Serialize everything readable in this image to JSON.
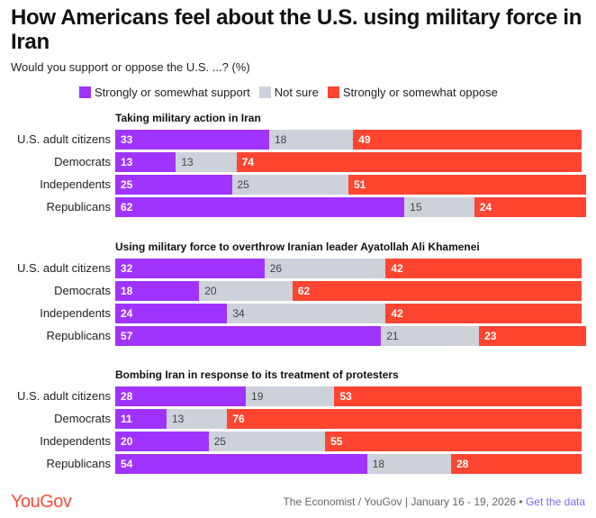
{
  "title": "How Americans feel about the U.S. using military force in Iran",
  "subtitle": "Would you support or oppose the U.S. ...? (%)",
  "footer": {
    "logo": "YouGov",
    "source": "The Economist / YouGov | January 16 - 19, 2026 •",
    "link": "Get the data"
  },
  "colors": {
    "support": "#a033ff",
    "not_sure": "#cdd1da",
    "oppose": "#ff4530"
  },
  "chart_data": {
    "type": "bar",
    "stacked": true,
    "orientation": "horizontal",
    "legend": [
      "Strongly or somewhat support",
      "Not sure",
      "Strongly or somewhat oppose"
    ],
    "categories": [
      "U.S. adult citizens",
      "Democrats",
      "Independents",
      "Republicans"
    ],
    "groups": [
      {
        "title": "Taking military action in Iran",
        "support": [
          33,
          13,
          25,
          62
        ],
        "not_sure": [
          18,
          13,
          25,
          15
        ],
        "oppose": [
          49,
          74,
          51,
          24
        ]
      },
      {
        "title": "Using military force to overthrow Iranian leader Ayatollah Ali Khamenei",
        "support": [
          32,
          18,
          24,
          57
        ],
        "not_sure": [
          26,
          20,
          34,
          21
        ],
        "oppose": [
          42,
          62,
          42,
          23
        ]
      },
      {
        "title": "Bombing Iran in response to its treatment of protesters",
        "support": [
          28,
          11,
          20,
          54
        ],
        "not_sure": [
          19,
          13,
          25,
          18
        ],
        "oppose": [
          53,
          76,
          55,
          28
        ]
      }
    ],
    "xlim": [
      0,
      100
    ]
  }
}
